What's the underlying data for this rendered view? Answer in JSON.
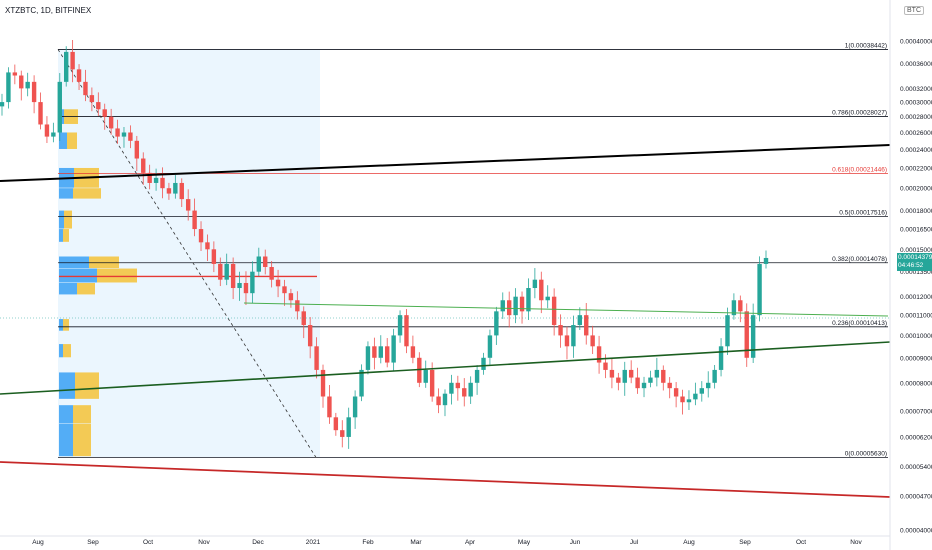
{
  "header": {
    "title": "XTZBTC, 1D, BITFINEX",
    "currency": "BTC"
  },
  "current_price": {
    "value": "0.00014379",
    "countdown": "04:46:52"
  },
  "chart_data": {
    "type": "candlestick",
    "title": "XTZBTC, 1D, BITFINEX",
    "price_axis": {
      "labels": [
        "0.00040000",
        "0.00036000",
        "0.00032000",
        "0.00030000",
        "0.00028000",
        "0.00026000",
        "0.00024000",
        "0.00022000",
        "0.00020000",
        "0.00018000",
        "0.00016500",
        "0.00015000",
        "0.00013500",
        "0.00012000",
        "0.00011000",
        "0.00010000",
        "0.00009000",
        "0.00008000",
        "0.00007000",
        "0.00006200",
        "0.00005400",
        "0.00004700",
        "0.00004000"
      ],
      "range": [
        4e-05,
        0.0004
      ],
      "scale": "log"
    },
    "time_axis": {
      "labels": [
        "Aug",
        "Sep",
        "Oct",
        "Nov",
        "Dec",
        "2021",
        "Feb",
        "Mar",
        "Apr",
        "May",
        "Jun",
        "Jul",
        "Aug",
        "Sep",
        "Oct",
        "Nov"
      ]
    },
    "fib_levels": [
      {
        "ratio": "1",
        "value": 0.00038442,
        "label": "1(0.00038442)",
        "color": "#131722"
      },
      {
        "ratio": "0.786",
        "value": 0.00028027,
        "label": "0.786(0.00028027)",
        "color": "#131722"
      },
      {
        "ratio": "0.618",
        "value": 0.00021446,
        "label": "0.618(0.00021446)",
        "color": "#e53935"
      },
      {
        "ratio": "0.5",
        "value": 0.00017516,
        "label": "0.5(0.00017516)",
        "color": "#131722"
      },
      {
        "ratio": "0.382",
        "value": 0.00014078,
        "label": "0.382(0.00014078)",
        "color": "#131722"
      },
      {
        "ratio": "0.236",
        "value": 0.00010413,
        "label": "0.236(0.00010413)",
        "color": "#131722"
      },
      {
        "ratio": "0",
        "value": 5.63e-05,
        "label": "0(0.00005630)",
        "color": "#131722"
      }
    ],
    "trendlines": [
      {
        "name": "black",
        "color": "#000000"
      },
      {
        "name": "green",
        "color": "#1b5e20"
      },
      {
        "name": "red",
        "color": "#c62828"
      },
      {
        "name": "thin-green",
        "color": "#4caf50"
      },
      {
        "name": "dashed",
        "color": "#333333"
      }
    ],
    "colors": {
      "up": "#26a69a",
      "down": "#ef5350",
      "volume_profile_up": "#42a5f5",
      "volume_profile_down": "#f4c542",
      "range_shade": "#e3f2fd"
    },
    "series": [
      {
        "name": "close",
        "values": [
          0.0003,
          0.000345,
          0.00034,
          0.00032,
          0.00033,
          0.0003,
          0.00027,
          0.000255,
          0.00026,
          0.00033,
          0.00038,
          0.00035,
          0.00033,
          0.00031,
          0.0003,
          0.00029,
          0.00028,
          0.000265,
          0.000255,
          0.00026,
          0.00025,
          0.00023,
          0.000215,
          0.000205,
          0.00021,
          0.0002,
          0.000195,
          0.000205,
          0.00019,
          0.00018,
          0.000165,
          0.000155,
          0.00015,
          0.00014,
          0.00013,
          0.00014,
          0.000125,
          0.000128,
          0.000122,
          0.000135,
          0.000145,
          0.000138,
          0.00013,
          0.000126,
          0.000122,
          0.000118,
          0.000112,
          0.000105,
          9.5e-05,
          8.5e-05,
          7.5e-05,
          6.8e-05,
          6.4e-05,
          6.2e-05,
          6.8e-05,
          7.5e-05,
          8.5e-05,
          9.5e-05,
          9e-05,
          9.5e-05,
          8.8e-05,
          0.0001,
          0.00011,
          9.5e-05,
          9e-05,
          8e-05,
          8.5e-05,
          7.5e-05,
          7.2e-05,
          7.6e-05,
          8e-05,
          7.8e-05,
          7.5e-05,
          8e-05,
          8.5e-05,
          9e-05,
          0.0001,
          0.000112,
          0.000118,
          0.00011,
          0.00012,
          0.000112,
          0.000125,
          0.00013,
          0.000118,
          0.00012,
          0.000105,
          0.0001,
          9.5e-05,
          0.000105,
          0.00011,
          0.0001,
          9.5e-05,
          8.8e-05,
          8.5e-05,
          8.2e-05,
          8e-05,
          8.5e-05,
          8.2e-05,
          7.8e-05,
          8e-05,
          8.2e-05,
          8.5e-05,
          8e-05,
          7.8e-05,
          7.5e-05,
          7.3e-05,
          7.4e-05,
          7.6e-05,
          7.8e-05,
          8e-05,
          8.5e-05,
          9.5e-05,
          0.00011,
          0.000118,
          0.000112,
          9e-05,
          0.00011,
          0.00014,
          0.000144
        ]
      }
    ]
  }
}
